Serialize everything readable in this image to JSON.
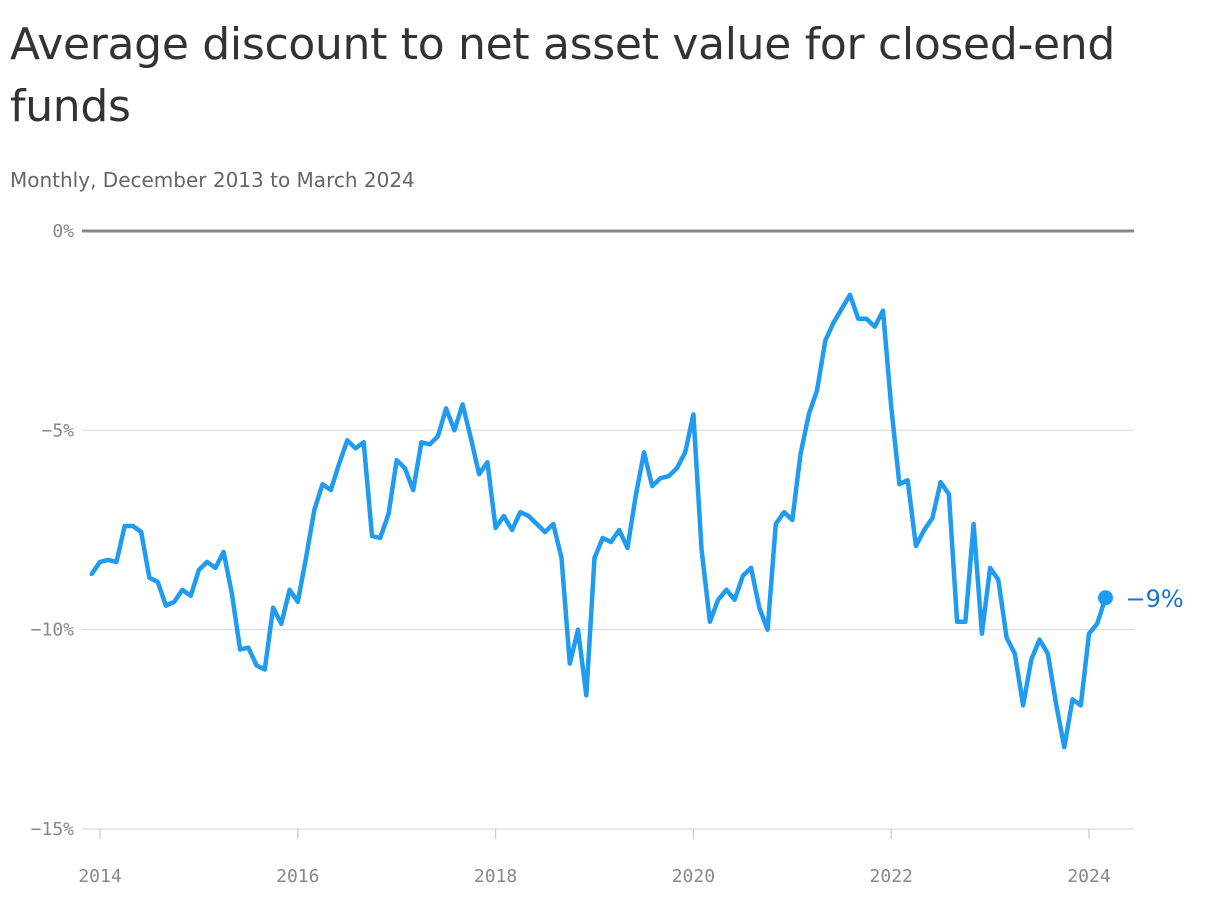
{
  "chart_data": {
    "type": "line",
    "title": "Average discount to net asset value for closed-end funds",
    "subtitle": "Monthly, December 2013 to March 2024",
    "xlabel": "",
    "ylabel": "",
    "ylim": [
      -15,
      0
    ],
    "xlim": [
      "2013-12",
      "2024-03"
    ],
    "y_ticks": [
      "0%",
      "−5%",
      "−10%",
      "−15%"
    ],
    "y_tick_values": [
      0,
      -5,
      -10,
      -15
    ],
    "x_ticks": [
      "2014",
      "2016",
      "2018",
      "2020",
      "2022",
      "2024"
    ],
    "x_tick_values": [
      "2014-01",
      "2016-01",
      "2018-01",
      "2020-01",
      "2022-01",
      "2024-01"
    ],
    "grid": true,
    "line_color": "#1f9bf0",
    "label_color": "#1a73c8",
    "end_label": "−9%",
    "series": [
      {
        "x": [
          "2013-12",
          "2014-01",
          "2014-02",
          "2014-03",
          "2014-04",
          "2014-05",
          "2014-06",
          "2014-07",
          "2014-08",
          "2014-09",
          "2014-10",
          "2014-11",
          "2014-12",
          "2015-01",
          "2015-02",
          "2015-03",
          "2015-04",
          "2015-05",
          "2015-06",
          "2015-07",
          "2015-08",
          "2015-09",
          "2015-10",
          "2015-11",
          "2015-12",
          "2016-01",
          "2016-02",
          "2016-03",
          "2016-04",
          "2016-05",
          "2016-06",
          "2016-07",
          "2016-08",
          "2016-09",
          "2016-10",
          "2016-11",
          "2016-12",
          "2017-01",
          "2017-02",
          "2017-03",
          "2017-04",
          "2017-05",
          "2017-06",
          "2017-07",
          "2017-08",
          "2017-09",
          "2017-10",
          "2017-11",
          "2017-12",
          "2018-01",
          "2018-02",
          "2018-03",
          "2018-04",
          "2018-05",
          "2018-06",
          "2018-07",
          "2018-08",
          "2018-09",
          "2018-10",
          "2018-11",
          "2018-12",
          "2019-01",
          "2019-02",
          "2019-03",
          "2019-04",
          "2019-05",
          "2019-06",
          "2019-07",
          "2019-08",
          "2019-09",
          "2019-10",
          "2019-11",
          "2019-12",
          "2020-01",
          "2020-02",
          "2020-03",
          "2020-04",
          "2020-05",
          "2020-06",
          "2020-07",
          "2020-08",
          "2020-09",
          "2020-10",
          "2020-11",
          "2020-12",
          "2021-01",
          "2021-02",
          "2021-03",
          "2021-04",
          "2021-05",
          "2021-06",
          "2021-07",
          "2021-08",
          "2021-09",
          "2021-10",
          "2021-11",
          "2021-12",
          "2022-01",
          "2022-02",
          "2022-03",
          "2022-04",
          "2022-05",
          "2022-06",
          "2022-07",
          "2022-08",
          "2022-09",
          "2022-10",
          "2022-11",
          "2022-12",
          "2023-01",
          "2023-02",
          "2023-03",
          "2023-04",
          "2023-05",
          "2023-06",
          "2023-07",
          "2023-08",
          "2023-09",
          "2023-10",
          "2023-11",
          "2023-12",
          "2024-01",
          "2024-02",
          "2024-03"
        ],
        "values": [
          -8.6,
          -8.3,
          -8.25,
          -8.3,
          -7.4,
          -7.4,
          -7.55,
          -8.7,
          -8.8,
          -9.4,
          -9.3,
          -9.0,
          -9.15,
          -8.5,
          -8.3,
          -8.45,
          -8.05,
          -9.1,
          -10.5,
          -10.45,
          -10.9,
          -11.0,
          -9.45,
          -9.85,
          -9.0,
          -9.3,
          -8.2,
          -7.0,
          -6.35,
          -6.5,
          -5.85,
          -5.25,
          -5.45,
          -5.3,
          -7.65,
          -7.7,
          -7.1,
          -5.75,
          -5.95,
          -6.5,
          -5.3,
          -5.35,
          -5.15,
          -4.45,
          -5.0,
          -4.35,
          -5.2,
          -6.1,
          -5.8,
          -7.45,
          -7.15,
          -7.5,
          -7.05,
          -7.15,
          -7.35,
          -7.55,
          -7.35,
          -8.2,
          -10.85,
          -10.0,
          -11.65,
          -8.2,
          -7.7,
          -7.8,
          -7.5,
          -7.95,
          -6.65,
          -5.55,
          -6.4,
          -6.2,
          -6.15,
          -5.95,
          -5.55,
          -4.6,
          -8.0,
          -9.8,
          -9.25,
          -9.0,
          -9.25,
          -8.65,
          -8.45,
          -9.45,
          -10.0,
          -7.35,
          -7.05,
          -7.25,
          -5.6,
          -4.6,
          -4.0,
          -2.75,
          -2.3,
          -1.95,
          -1.6,
          -2.2,
          -2.2,
          -2.4,
          -2.0,
          -4.4,
          -6.35,
          -6.25,
          -7.9,
          -7.5,
          -7.2,
          -6.3,
          -6.6,
          -9.8,
          -9.8,
          -7.35,
          -10.1,
          -8.45,
          -8.75,
          -10.2,
          -10.6,
          -11.9,
          -10.75,
          -10.25,
          -10.6,
          -11.85,
          -12.95,
          -11.75,
          -11.9,
          -10.1,
          -9.85,
          -9.2
        ]
      }
    ]
  }
}
